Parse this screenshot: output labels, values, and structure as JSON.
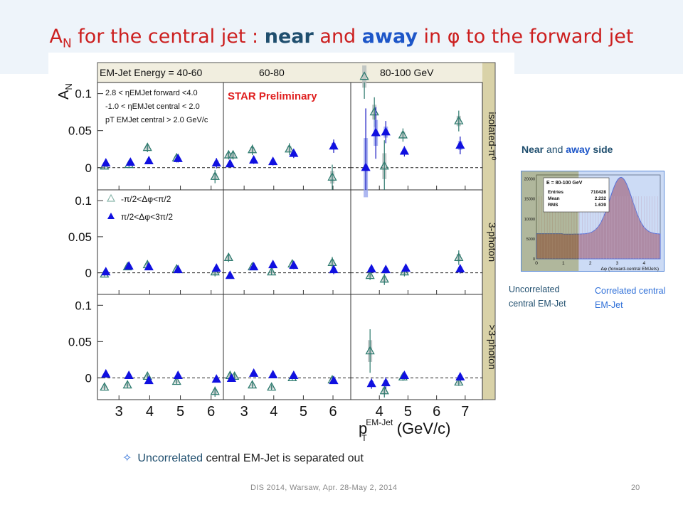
{
  "title": {
    "prefix": "A",
    "sub": "N",
    "part1": " for the central jet : ",
    "near": "near",
    "and": " and ",
    "away": "away",
    "part2": " in φ to the forward jet"
  },
  "colors": {
    "near": "#8ab6ab",
    "away": "#1010e0",
    "title_red": "#cc1f1f",
    "band_grey": "#b5bdbd",
    "band_blue": "#9aa6ee"
  },
  "chart_data": {
    "type": "scatter",
    "header_label": "EM-Jet Energy = ",
    "columns": [
      "40-60",
      "60-80",
      "80-100 GeV"
    ],
    "rows": [
      "isolated-π⁰",
      "3-photon",
      ">3-photon"
    ],
    "y_label": "A",
    "y_label_sub": "N",
    "y_ticks": [
      0,
      0.05,
      0.1
    ],
    "ylim": [
      -0.03,
      0.115
    ],
    "xlim": [
      [
        2.3,
        6.4
      ],
      [
        2.3,
        6.6
      ],
      [
        3.0,
        7.6
      ]
    ],
    "x_ticks": [
      [
        3,
        4,
        5,
        6
      ],
      [
        3,
        4,
        5,
        6
      ],
      [
        4,
        5,
        6,
        7
      ]
    ],
    "x_label": "p",
    "x_label_sub": "T",
    "x_label_sup": "EM-Jet",
    "x_label_unit": " (GeV/c)",
    "preliminary": "STAR Preliminary",
    "cuts": [
      "2.8 < ηEMJet forward <4.0",
      "-1.0 < ηEMJet central < 2.0",
      "pT EMJet central > 2.0 GeV/c"
    ],
    "legend": [
      "-π/2<Δφ<π/2",
      "π/2<Δφ<3π/2"
    ],
    "series_near": [
      [
        [
          [
            2.55,
            0.002,
            0.004
          ],
          [
            3.35,
            0.004,
            0.004
          ],
          [
            3.95,
            0.027,
            0.006
          ],
          [
            4.9,
            0.013,
            0.006
          ],
          [
            6.15,
            -0.012,
            0.009
          ]
        ],
        [
          [
            2.5,
            0.017,
            0.006
          ],
          [
            2.65,
            0.017,
            0.006
          ],
          [
            3.3,
            0.024,
            0.007
          ],
          [
            4.55,
            0.025,
            0.008
          ],
          [
            6.0,
            -0.013,
            0.017
          ]
        ],
        [
          [
            3.5,
            0.123,
            0.03
          ],
          [
            4.2,
            0.002,
            0.035
          ],
          [
            4.85,
            0.044,
            0.009
          ],
          [
            6.8,
            0.063,
            0.014
          ],
          [
            3.85,
            0.075,
            0.02
          ]
        ]
      ],
      [
        [
          [
            2.55,
            -0.002,
            0.003
          ],
          [
            3.3,
            0.008,
            0.004
          ],
          [
            3.95,
            0.011,
            0.005
          ],
          [
            4.9,
            0.005,
            0.004
          ],
          [
            6.15,
            0.001,
            0.006
          ]
        ],
        [
          [
            2.5,
            0.021,
            0.006
          ],
          [
            3.3,
            0.008,
            0.004
          ],
          [
            3.95,
            0.001,
            0.004
          ],
          [
            4.65,
            0.012,
            0.005
          ],
          [
            6.0,
            0.014,
            0.008
          ]
        ],
        [
          [
            3.7,
            -0.004,
            0.006
          ],
          [
            4.2,
            -0.009,
            0.008
          ],
          [
            4.9,
            0.001,
            0.006
          ],
          [
            6.8,
            0.021,
            0.01
          ]
        ]
      ],
      [
        [
          [
            2.55,
            -0.013,
            0.004
          ],
          [
            3.3,
            -0.01,
            0.004
          ],
          [
            3.95,
            0.002,
            0.004
          ],
          [
            4.9,
            -0.005,
            0.004
          ],
          [
            6.15,
            -0.019,
            0.007
          ]
        ],
        [
          [
            2.55,
            0.003,
            0.006
          ],
          [
            2.7,
            0.002,
            0.006
          ],
          [
            3.3,
            -0.01,
            0.004
          ],
          [
            3.95,
            -0.013,
            0.004
          ],
          [
            4.65,
            0.0,
            0.003
          ],
          [
            6.0,
            -0.003,
            0.005
          ]
        ],
        [
          [
            3.7,
            0.037,
            0.03
          ],
          [
            4.2,
            -0.018,
            0.009
          ],
          [
            4.85,
            0.001,
            0.005
          ],
          [
            6.8,
            -0.006,
            0.005
          ]
        ]
      ]
    ],
    "series_away": [
      [
        [
          [
            2.55,
            0.006,
            0.003
          ],
          [
            3.35,
            0.007,
            0.003
          ],
          [
            3.95,
            0.009,
            0.004
          ],
          [
            4.9,
            0.012,
            0.005
          ],
          [
            6.15,
            0.006,
            0.007
          ]
        ],
        [
          [
            2.5,
            0.005,
            0.004
          ],
          [
            3.3,
            0.01,
            0.005
          ],
          [
            3.95,
            0.008,
            0.005
          ],
          [
            4.65,
            0.019,
            0.006
          ],
          [
            6.0,
            0.029,
            0.009
          ]
        ],
        [
          [
            3.5,
            0.0,
            0.08
          ],
          [
            4.2,
            0.048,
            0.015
          ],
          [
            4.85,
            0.022,
            0.007
          ],
          [
            6.8,
            0.03,
            0.012
          ],
          [
            3.85,
            0.047,
            0.035
          ]
        ]
      ],
      [
        [
          [
            2.55,
            0.001,
            0.003
          ],
          [
            3.3,
            0.009,
            0.004
          ],
          [
            3.95,
            0.008,
            0.004
          ],
          [
            4.9,
            0.004,
            0.004
          ],
          [
            6.15,
            0.006,
            0.005
          ]
        ],
        [
          [
            2.5,
            -0.004,
            0.004
          ],
          [
            3.3,
            0.008,
            0.004
          ],
          [
            3.95,
            0.011,
            0.005
          ],
          [
            4.65,
            0.01,
            0.005
          ],
          [
            6.0,
            0.004,
            0.006
          ]
        ],
        [
          [
            3.7,
            0.005,
            0.005
          ],
          [
            4.2,
            0.004,
            0.005
          ],
          [
            4.9,
            0.006,
            0.005
          ],
          [
            6.8,
            0.005,
            0.006
          ]
        ]
      ],
      [
        [
          [
            2.55,
            0.005,
            0.003
          ],
          [
            3.3,
            0.003,
            0.003
          ],
          [
            3.95,
            -0.004,
            0.003
          ],
          [
            4.9,
            0.003,
            0.003
          ],
          [
            6.15,
            -0.002,
            0.004
          ]
        ],
        [
          [
            2.55,
            -0.001,
            0.004
          ],
          [
            3.3,
            0.006,
            0.004
          ],
          [
            3.95,
            0.004,
            0.004
          ],
          [
            4.65,
            0.003,
            0.003
          ],
          [
            6.0,
            -0.004,
            0.004
          ]
        ],
        [
          [
            3.7,
            -0.008,
            0.007
          ],
          [
            4.2,
            -0.007,
            0.008
          ],
          [
            4.85,
            0.003,
            0.005
          ],
          [
            6.8,
            0.001,
            0.005
          ]
        ]
      ]
    ]
  },
  "side": {
    "near": "Near",
    "and": " and ",
    "away": "away",
    "side": " side"
  },
  "inset": {
    "energy": "E = 80-100 GeV",
    "stats": [
      [
        "Entries",
        "710428"
      ],
      [
        "Mean",
        "2.232"
      ],
      [
        "RMS",
        "1.639"
      ]
    ],
    "x_ticks": [
      "0",
      "1",
      "2",
      "3",
      "4"
    ],
    "y_ticks": [
      "0",
      "5000",
      "10000",
      "15000",
      "20000"
    ],
    "x_label": "Δφ (forward-central EMJets)"
  },
  "labels": {
    "uncorrelated": "Uncorrelated central EM-Jet",
    "correlated": "Correlated central EM-Jet"
  },
  "bullet": {
    "star": "✧",
    "uncorrelated": "Uncorrelated",
    "rest": " central EM-Jet is separated out"
  },
  "footer": "DIS 2014,  Warsaw,  Apr. 28-May 2, 2014",
  "page": "20"
}
